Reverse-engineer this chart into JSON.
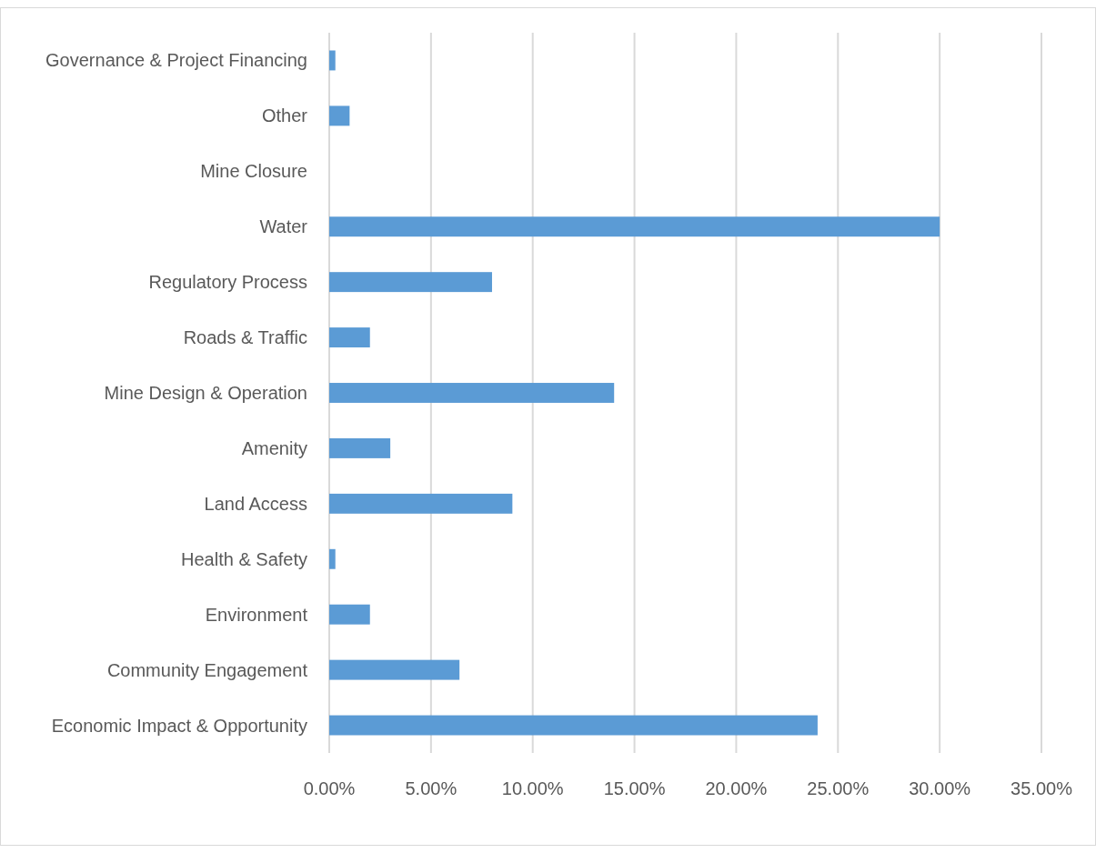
{
  "chart_data": {
    "type": "bar",
    "orientation": "horizontal",
    "categories": [
      "Governance & Project Financing",
      "Other",
      "Mine Closure",
      "Water",
      "Regulatory Process",
      "Roads & Traffic",
      "Mine Design & Operation",
      "Amenity",
      "Land Access",
      "Health & Safety",
      "Environment",
      "Community Engagement",
      "Economic Impact & Opportunity"
    ],
    "values": [
      0.3,
      1.0,
      0,
      30.0,
      8.0,
      2.0,
      14.0,
      3.0,
      9.0,
      0.3,
      2.0,
      6.4,
      24.0
    ],
    "color": "#5b9bd5",
    "xlim": [
      0,
      35
    ],
    "xticks": [
      {
        "value": 0,
        "label": "0.00%"
      },
      {
        "value": 5,
        "label": "5.00%"
      },
      {
        "value": 10,
        "label": "10.00%"
      },
      {
        "value": 15,
        "label": "15.00%"
      },
      {
        "value": 20,
        "label": "20.00%"
      },
      {
        "value": 25,
        "label": "25.00%"
      },
      {
        "value": 30,
        "label": "30.00%"
      },
      {
        "value": 35,
        "label": "35.00%"
      }
    ],
    "grid": "x"
  }
}
